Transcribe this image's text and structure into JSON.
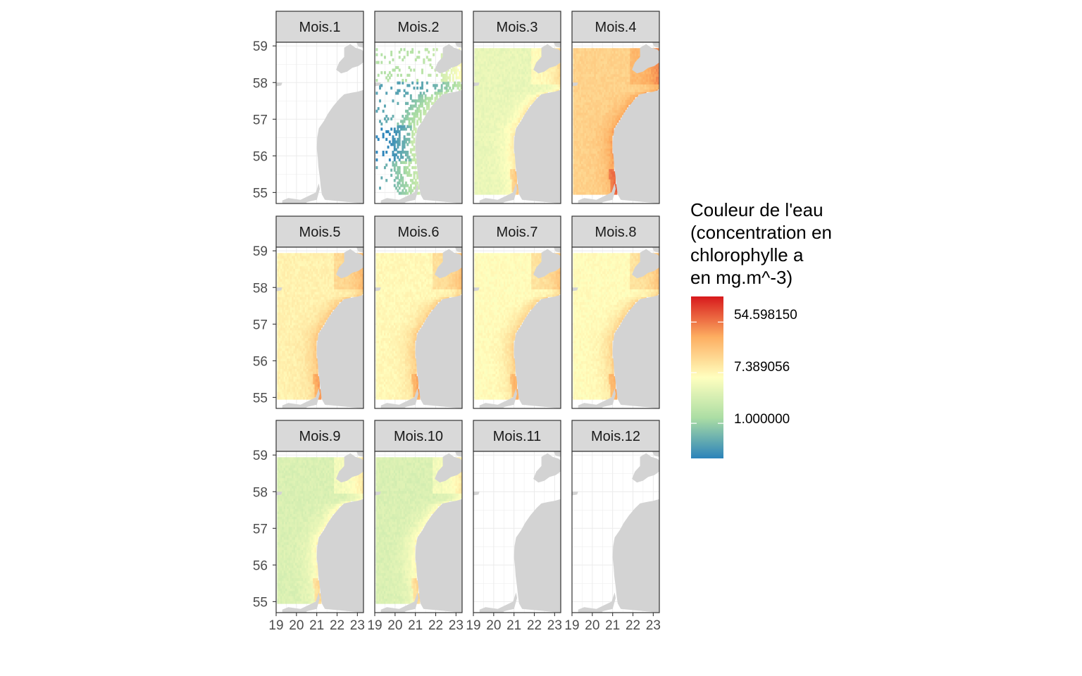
{
  "chart_data": {
    "type": "heatmap",
    "subtype": "faceted-map",
    "facets": [
      {
        "label": "Mois.1",
        "coverage": "none",
        "level": null
      },
      {
        "label": "Mois.2",
        "coverage": "sparse",
        "level": 0.8
      },
      {
        "label": "Mois.3",
        "coverage": "full",
        "level": 4.0
      },
      {
        "label": "Mois.4",
        "coverage": "full",
        "level": 15.0
      },
      {
        "label": "Mois.5",
        "coverage": "full",
        "level": 8.0
      },
      {
        "label": "Mois.6",
        "coverage": "full",
        "level": 7.0
      },
      {
        "label": "Mois.7",
        "coverage": "full",
        "level": 6.5
      },
      {
        "label": "Mois.8",
        "coverage": "full",
        "level": 6.5
      },
      {
        "label": "Mois.9",
        "coverage": "full",
        "level": 3.0
      },
      {
        "label": "Mois.10",
        "coverage": "full",
        "level": 3.0
      },
      {
        "label": "Mois.11",
        "coverage": "none",
        "level": null
      },
      {
        "label": "Mois.12",
        "coverage": "none",
        "level": null
      }
    ],
    "x_ticks": [
      "19",
      "20",
      "21",
      "22",
      "23"
    ],
    "y_ticks": [
      "55",
      "56",
      "57",
      "58",
      "59"
    ],
    "xlim": [
      19,
      23.3
    ],
    "ylim": [
      54.7,
      59.1
    ],
    "legend": {
      "title_lines": [
        "Couleur de l'eau",
        "(concentration en",
        "chlorophylle a",
        "en mg.m^-3)"
      ],
      "labels": [
        "54.598150",
        "7.389056",
        "1.000000"
      ],
      "scale": "log",
      "range": [
        0.25,
        150
      ],
      "placement": "right"
    },
    "palette": [
      "#2b83ba",
      "#abdda4",
      "#ffffbf",
      "#fdae61",
      "#d7191c"
    ],
    "land_color": "#d3d3d3",
    "strip_color": "#d9d9d9",
    "grid": true,
    "theme": "bw"
  }
}
